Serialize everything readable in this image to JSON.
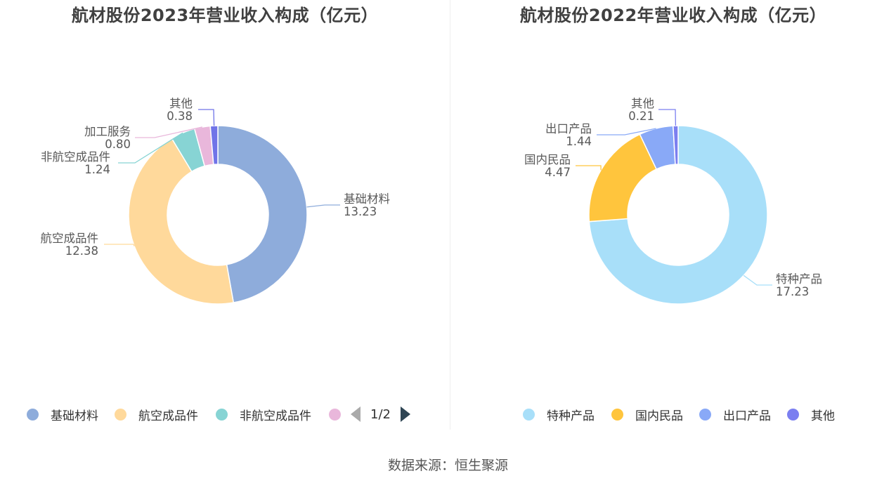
{
  "charts": [
    {
      "title": "航材股份2023年营业收入构成（亿元）",
      "legend_items": [
        "基础材料",
        "航空成品件",
        "非航空成品件",
        ""
      ],
      "pager": "1/2"
    },
    {
      "title": "航材股份2022年营业收入构成（亿元）",
      "legend_items": [
        "特种产品",
        "国内民品",
        "出口产品",
        "其他"
      ]
    }
  ],
  "source": "数据来源：恒生聚源",
  "chart_data": [
    {
      "type": "pie",
      "title": "航材股份2023年营业收入构成（亿元）",
      "categories": [
        "基础材料",
        "航空成品件",
        "非航空成品件",
        "加工服务",
        "其他"
      ],
      "values": [
        13.23,
        12.38,
        1.24,
        0.8,
        0.38
      ],
      "value_labels": [
        "13.23",
        "12.38",
        "1.24",
        "0.80",
        "0.38"
      ],
      "colors": [
        "#8eacdb",
        "#ffd99b",
        "#87d4d4",
        "#e9b7db",
        "#7074e8"
      ],
      "donut": true,
      "legend_position": "bottom"
    },
    {
      "type": "pie",
      "title": "航材股份2022年营业收入构成（亿元）",
      "categories": [
        "特种产品",
        "国内民品",
        "出口产品",
        "其他"
      ],
      "values": [
        17.23,
        4.47,
        1.44,
        0.21
      ],
      "value_labels": [
        "17.23",
        "4.47",
        "1.44",
        "0.21"
      ],
      "colors": [
        "#a8dff9",
        "#ffc53d",
        "#89a9f7",
        "#7b7ff0"
      ],
      "donut": true,
      "legend_position": "bottom"
    }
  ]
}
